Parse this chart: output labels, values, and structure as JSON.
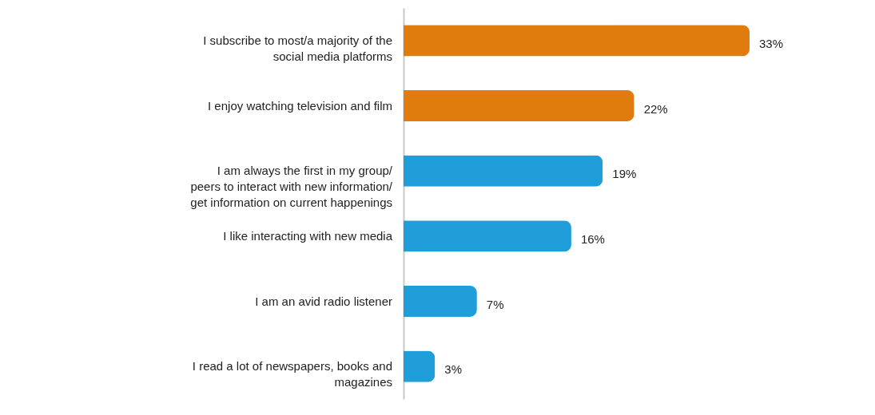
{
  "chart_data": {
    "type": "bar",
    "orientation": "horizontal",
    "categories": [
      "I subscribe to most/a majority of the social media platforms",
      "I enjoy watching television and film",
      "I am always the first in my group/ peers to interact with new information/ get information on current happenings",
      "I like interacting with new media",
      "I am an avid radio listener",
      "I read a lot of newspapers, books and magazines"
    ],
    "values": [
      33,
      22,
      19,
      16,
      7,
      3
    ],
    "colors": [
      "#e07b0e",
      "#e07b0e",
      "#1f9ed9",
      "#1f9ed9",
      "#1f9ed9",
      "#1f9ed9"
    ],
    "value_labels": [
      "33%",
      "22%",
      "19%",
      "16%",
      "7%",
      "3%"
    ],
    "tick_labels": "y",
    "grid": false
  }
}
